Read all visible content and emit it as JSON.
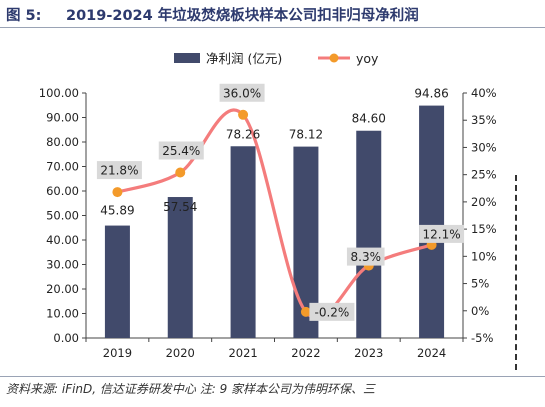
{
  "figure": {
    "label": "图 5:",
    "title": "2019-2024 年垃圾焚烧板块样本公司扣非归母净利润",
    "footer": "资料来源: iFinD, 信达证券研发中心   注: 9 家样本公司为伟明环保、三"
  },
  "chart_data": {
    "type": "bar",
    "categories": [
      "2019",
      "2020",
      "2021",
      "2022",
      "2023",
      "2024"
    ],
    "series": [
      {
        "name": "净利润 (亿元)",
        "type": "bar",
        "axis": "left",
        "values": [
          45.89,
          57.54,
          78.26,
          78.12,
          84.6,
          94.86
        ],
        "labels": [
          "45.89",
          "57.54",
          "78.26",
          "78.12",
          "84.60",
          "94.86"
        ],
        "color": "#414a6b"
      },
      {
        "name": "yoy",
        "type": "line",
        "axis": "right",
        "values": [
          21.8,
          25.4,
          36.0,
          -0.2,
          8.3,
          12.1
        ],
        "labels": [
          "21.8%",
          "25.4%",
          "36.0%",
          "-0.2%",
          "8.3%",
          "12.1%"
        ],
        "color": "#f47c7c",
        "marker_color": "#f39a2a"
      }
    ],
    "y_left": {
      "ylim": [
        0,
        100
      ],
      "ticks": [
        "0.00",
        "10.00",
        "20.00",
        "30.00",
        "40.00",
        "50.00",
        "60.00",
        "70.00",
        "80.00",
        "90.00",
        "100.00"
      ]
    },
    "y_right": {
      "ylim": [
        -5,
        40
      ],
      "ticks": [
        "-5%",
        "0%",
        "5%",
        "10%",
        "15%",
        "20%",
        "25%",
        "30%",
        "35%",
        "40%"
      ]
    },
    "legend": "top-center",
    "grid": false
  }
}
